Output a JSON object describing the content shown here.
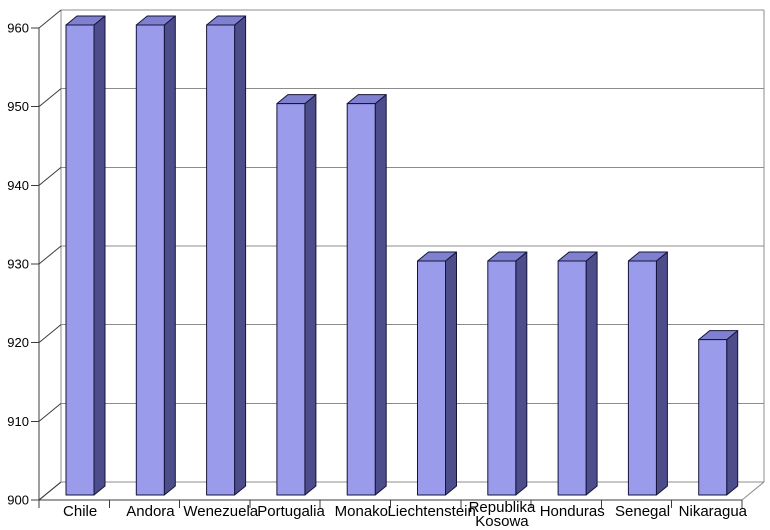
{
  "page": {
    "background": "#ffffff"
  },
  "chart_data": {
    "type": "bar",
    "style": "3d-column",
    "title": "",
    "xlabel": "",
    "ylabel": "",
    "categories": [
      "Chile",
      "Andora",
      "Wenezuela",
      "Portugalia",
      "Monako",
      "Liechtenstein",
      "Republika Kosowa",
      "Honduras",
      "Senegal",
      "Nikaragua"
    ],
    "values": [
      960,
      960,
      960,
      950,
      950,
      930,
      930,
      930,
      930,
      920
    ],
    "ylim": [
      900,
      960
    ],
    "ytick_step": 10,
    "ytick_labels": [
      "900",
      "910",
      "920",
      "930",
      "940",
      "950",
      "960"
    ],
    "grid": true,
    "legend": false,
    "multiline_categories": {
      "Republika Kosowa": [
        "Republika",
        "Kosowa"
      ]
    },
    "colors": {
      "bar_front": "#9b9bec",
      "bar_top": "#8080d0",
      "bar_side": "#4d4d8c",
      "bar_outline": "#14143a",
      "gridline": "#8c8c8c",
      "wall_edge": "#8c8c8c",
      "axis": "#3c3c3c",
      "label": "#000000",
      "background": "#ffffff"
    }
  }
}
